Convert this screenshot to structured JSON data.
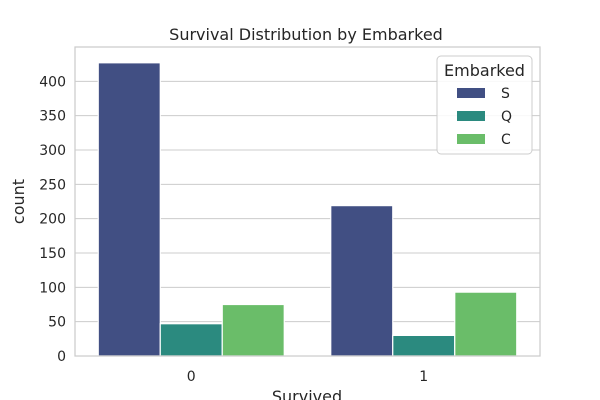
{
  "chart_data": {
    "type": "bar",
    "title": "Survival Distribution by Embarked",
    "xlabel": "Survived",
    "ylabel": "count",
    "categories": [
      "0",
      "1"
    ],
    "series": [
      {
        "name": "S",
        "values": [
          427,
          219
        ],
        "color": "#414f83"
      },
      {
        "name": "Q",
        "values": [
          47,
          30
        ],
        "color": "#2b8a7f"
      },
      {
        "name": "C",
        "values": [
          75,
          93
        ],
        "color": "#6abd69"
      }
    ],
    "ylim": [
      0,
      450
    ],
    "yticks": [
      0,
      50,
      100,
      150,
      200,
      250,
      300,
      350,
      400
    ],
    "grid": true,
    "legend": {
      "title": "Embarked",
      "placement": "top-right"
    }
  }
}
